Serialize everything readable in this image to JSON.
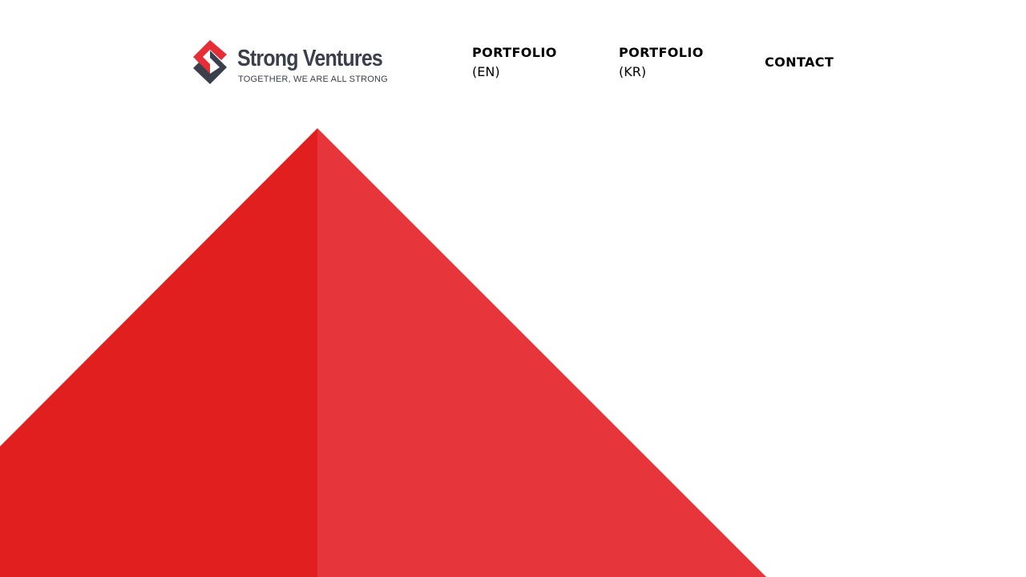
{
  "brand": {
    "name": "Strong Ventures",
    "tagline": "TOGETHER, WE ARE ALL STRONG",
    "logo_icon": "strong-ventures-s-icon",
    "colors": {
      "red": "#e52e36",
      "dark": "#3a3f4b"
    }
  },
  "nav": {
    "items": [
      {
        "label": "PORTFOLIO",
        "sub": "(EN)"
      },
      {
        "label": "PORTFOLIO",
        "sub": "(KR)"
      },
      {
        "label": "CONTACT"
      }
    ]
  },
  "hero": {
    "colors": {
      "left": "#e21f1f",
      "right": "#e7363b"
    }
  }
}
